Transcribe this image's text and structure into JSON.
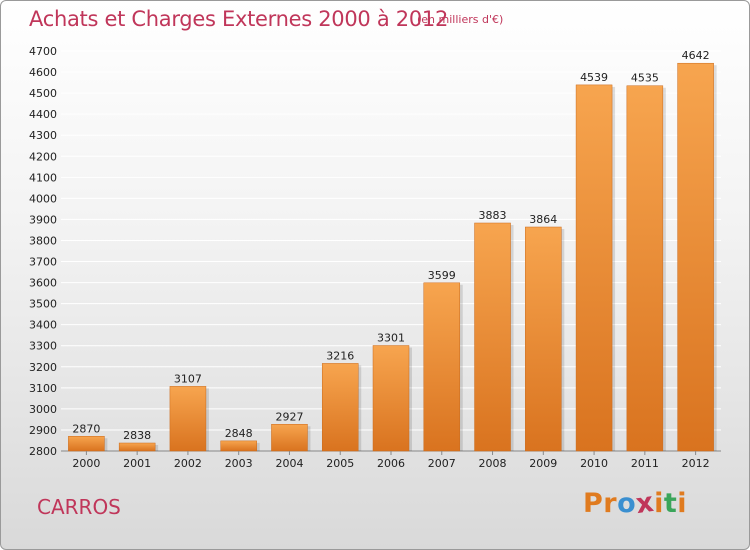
{
  "header": {
    "title": "Achats et Charges Externes 2000 à 2012",
    "subtitle": "(en milliers d'€)"
  },
  "footer": {
    "city": "CARROS",
    "logo_letters": [
      "P",
      "r",
      "o",
      "x",
      "i",
      "t",
      "i"
    ]
  },
  "colors": {
    "title": "#c0365a",
    "bar_light": "#f7a54f",
    "bar_dark": "#d9731f",
    "grid": "#ffffff",
    "logo": [
      "#e07b1f",
      "#e07b1f",
      "#3a8fd0",
      "#c0365a",
      "#e07b1f",
      "#3aa55a",
      "#e07b1f"
    ]
  },
  "chart_data": {
    "type": "bar",
    "title": "Achats et Charges Externes 2000 à 2012",
    "subtitle": "(en milliers d'€)",
    "categories": [
      "2000",
      "2001",
      "2002",
      "2003",
      "2004",
      "2005",
      "2006",
      "2007",
      "2008",
      "2009",
      "2010",
      "2011",
      "2012"
    ],
    "values": [
      2870,
      2838,
      3107,
      2848,
      2927,
      3216,
      3301,
      3599,
      3883,
      3864,
      4539,
      4535,
      4642
    ],
    "ylim": [
      2800,
      4700
    ],
    "yticks": [
      "2800",
      "2900",
      "3000",
      "3100",
      "3200",
      "3300",
      "3400",
      "3500",
      "3600",
      "3700",
      "3800",
      "3900",
      "4000",
      "4100",
      "4200",
      "4300",
      "4400",
      "4500",
      "4600",
      "4700"
    ],
    "grid": true,
    "xlabel": "",
    "ylabel": ""
  }
}
